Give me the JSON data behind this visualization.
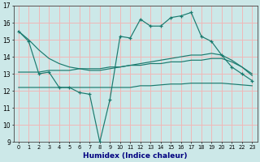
{
  "xlabel": "Humidex (Indice chaleur)",
  "x": [
    0,
    1,
    2,
    3,
    4,
    5,
    6,
    7,
    8,
    9,
    10,
    11,
    12,
    13,
    14,
    15,
    16,
    17,
    18,
    19,
    20,
    21,
    22,
    23
  ],
  "y_main": [
    15.5,
    14.9,
    13.0,
    13.1,
    12.2,
    12.2,
    11.9,
    11.8,
    9.0,
    11.5,
    15.2,
    15.1,
    16.2,
    15.8,
    15.8,
    16.3,
    16.4,
    16.6,
    15.2,
    14.9,
    14.1,
    13.4,
    13.0,
    12.6
  ],
  "y_upper": [
    15.5,
    15.0,
    14.4,
    13.9,
    13.6,
    13.4,
    13.3,
    13.2,
    13.2,
    13.3,
    13.4,
    13.5,
    13.6,
    13.7,
    13.8,
    13.9,
    14.0,
    14.1,
    14.1,
    14.2,
    14.1,
    13.8,
    13.4,
    12.9
  ],
  "y_mid": [
    13.1,
    13.1,
    13.1,
    13.2,
    13.2,
    13.2,
    13.3,
    13.3,
    13.3,
    13.4,
    13.4,
    13.5,
    13.5,
    13.6,
    13.6,
    13.7,
    13.7,
    13.8,
    13.8,
    13.9,
    13.9,
    13.7,
    13.4,
    13.0
  ],
  "y_low": [
    12.2,
    12.2,
    12.2,
    12.2,
    12.2,
    12.2,
    12.2,
    12.2,
    12.2,
    12.2,
    12.2,
    12.2,
    12.3,
    12.3,
    12.35,
    12.4,
    12.4,
    12.45,
    12.45,
    12.45,
    12.45,
    12.4,
    12.35,
    12.3
  ],
  "color": "#1a7a6e",
  "bg_color": "#cce8e8",
  "grid_color": "#f0b8b8",
  "ylim": [
    9,
    17
  ],
  "yticks": [
    9,
    10,
    11,
    12,
    13,
    14,
    15,
    16,
    17
  ]
}
